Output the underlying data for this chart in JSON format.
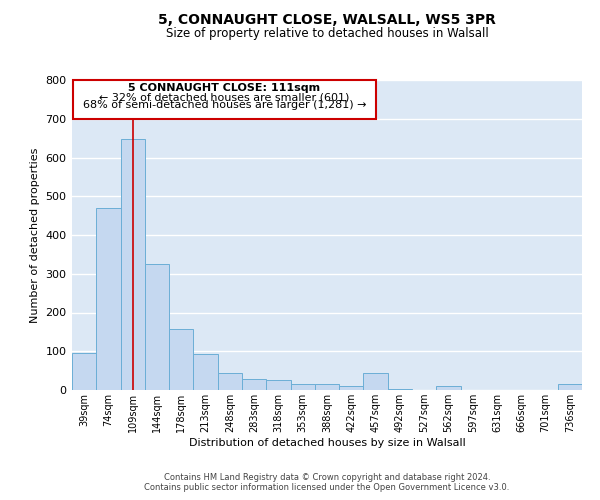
{
  "title": "5, CONNAUGHT CLOSE, WALSALL, WS5 3PR",
  "subtitle": "Size of property relative to detached houses in Walsall",
  "bar_labels": [
    "39sqm",
    "74sqm",
    "109sqm",
    "144sqm",
    "178sqm",
    "213sqm",
    "248sqm",
    "283sqm",
    "318sqm",
    "353sqm",
    "388sqm",
    "422sqm",
    "457sqm",
    "492sqm",
    "527sqm",
    "562sqm",
    "597sqm",
    "631sqm",
    "666sqm",
    "701sqm",
    "736sqm"
  ],
  "bar_values": [
    95,
    470,
    648,
    325,
    157,
    93,
    43,
    28,
    25,
    15,
    15,
    10,
    43,
    3,
    0,
    10,
    0,
    0,
    0,
    0,
    15
  ],
  "bar_color": "#c5d8f0",
  "bar_edgecolor": "#6baed6",
  "plot_bg_color": "#dce8f5",
  "grid_color": "#ffffff",
  "ylabel": "Number of detached properties",
  "xlabel": "Distribution of detached houses by size in Walsall",
  "ylim": [
    0,
    800
  ],
  "yticks": [
    0,
    100,
    200,
    300,
    400,
    500,
    600,
    700,
    800
  ],
  "vline_x": 2,
  "vline_color": "#cc0000",
  "annotation_title": "5 CONNAUGHT CLOSE: 111sqm",
  "annotation_line1": "← 32% of detached houses are smaller (601)",
  "annotation_line2": "68% of semi-detached houses are larger (1,281) →",
  "footer_line1": "Contains HM Land Registry data © Crown copyright and database right 2024.",
  "footer_line2": "Contains public sector information licensed under the Open Government Licence v3.0."
}
